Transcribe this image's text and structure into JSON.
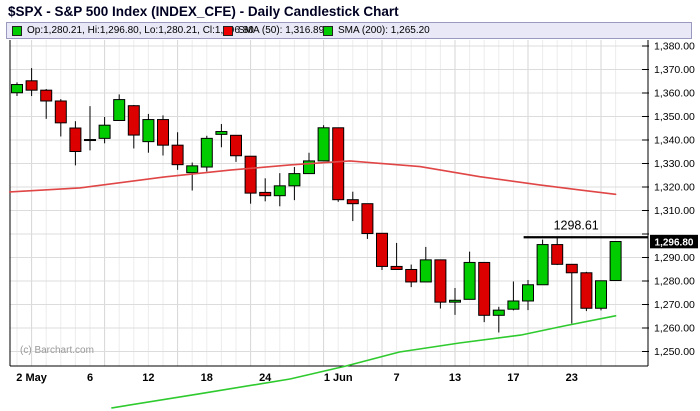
{
  "title": "$SPX - S&P 500 Index (INDEX_CFE) - Daily Candlestick Chart",
  "legend": {
    "ohlc": {
      "label": "Op:1,280.21, Hi:1,296.80, Lo:1,280.21, Cl:1,296.80",
      "color": "#00cc00"
    },
    "sma50": {
      "label": "SMA (50): 1,316.89",
      "color": "#ee0000",
      "value": 1316.89
    },
    "sma200": {
      "label": "SMA (200): 1,265.20",
      "color": "#00cc00",
      "value": 1265.2
    }
  },
  "watermark": "(c) Barchart.com",
  "price_tag": {
    "label": "1,296.80",
    "price": 1296.8
  },
  "colors": {
    "candle_up": "#00cc00",
    "candle_down": "#dd0000",
    "candle_border": "#000000",
    "sma50_line": "#e04646",
    "sma200_line": "#2eca2e",
    "grid_vertical": "#ececec",
    "grid_vertical_week": "#d6d6d6",
    "grid_horizontal": "#dcdcdc",
    "axis": "#000000",
    "annotation": "#000000",
    "tag_bg": "#000000",
    "tag_text": "#ffffff",
    "legend_bg": "#e8e8f7"
  },
  "chart_data": {
    "type": "candlestick",
    "title": "$SPX Daily Candlestick",
    "y_axis": {
      "min": 1250,
      "max": 1380,
      "tick_step": 10,
      "labels": [
        {
          "price": 1380,
          "label": "1,380.00"
        },
        {
          "price": 1370,
          "label": "1,370.00"
        },
        {
          "price": 1360,
          "label": "1,360.00"
        },
        {
          "price": 1350,
          "label": "1,350.00"
        },
        {
          "price": 1340,
          "label": "1,340.00"
        },
        {
          "price": 1330,
          "label": "1,330.00"
        },
        {
          "price": 1320,
          "label": "1,320.00"
        },
        {
          "price": 1310,
          "label": "1,310.00"
        },
        {
          "price": 1290,
          "label": "1,290.00"
        },
        {
          "price": 1280,
          "label": "1,280.00"
        },
        {
          "price": 1270,
          "label": "1,270.00"
        },
        {
          "price": 1260,
          "label": "1,260.00"
        },
        {
          "price": 1250,
          "label": "1,250.00"
        }
      ]
    },
    "x_axis": {
      "labels": [
        {
          "label": "2 May",
          "index": 1
        },
        {
          "label": "6",
          "index": 5
        },
        {
          "label": "12",
          "index": 9
        },
        {
          "label": "18",
          "index": 13
        },
        {
          "label": "24",
          "index": 17
        },
        {
          "label": "1 Jun",
          "index": 22
        },
        {
          "label": "7",
          "index": 26
        },
        {
          "label": "13",
          "index": 30
        },
        {
          "label": "17",
          "index": 34
        },
        {
          "label": "23",
          "index": 38
        }
      ],
      "week_start_indices": [
        1,
        6,
        11,
        16,
        21,
        25,
        30,
        35,
        40
      ]
    },
    "candles": [
      {
        "date": "29 Apr",
        "o": 1360.1,
        "h": 1364.5,
        "l": 1358.7,
        "c": 1363.6
      },
      {
        "date": "2 May",
        "o": 1365.2,
        "h": 1370.6,
        "l": 1358.7,
        "c": 1361.2
      },
      {
        "date": "3 May",
        "o": 1361.2,
        "h": 1361.7,
        "l": 1349.0,
        "c": 1356.6
      },
      {
        "date": "4 May",
        "o": 1356.6,
        "h": 1357.4,
        "l": 1341.5,
        "c": 1347.3
      },
      {
        "date": "5 May",
        "o": 1345.1,
        "h": 1348.0,
        "l": 1329.2,
        "c": 1335.1
      },
      {
        "date": "6 May",
        "o": 1340.2,
        "h": 1354.4,
        "l": 1335.6,
        "c": 1340.2
      },
      {
        "date": "9 May",
        "o": 1340.7,
        "h": 1349.8,
        "l": 1338.6,
        "c": 1346.3
      },
      {
        "date": "10 May",
        "o": 1348.3,
        "h": 1359.4,
        "l": 1348.3,
        "c": 1357.2
      },
      {
        "date": "11 May",
        "o": 1354.6,
        "h": 1354.9,
        "l": 1336.4,
        "c": 1342.1
      },
      {
        "date": "12 May",
        "o": 1339.3,
        "h": 1351.1,
        "l": 1334.6,
        "c": 1348.7
      },
      {
        "date": "13 May",
        "o": 1348.7,
        "h": 1350.5,
        "l": 1333.4,
        "c": 1337.8
      },
      {
        "date": "16 May",
        "o": 1337.8,
        "h": 1343.3,
        "l": 1327.3,
        "c": 1329.5
      },
      {
        "date": "17 May",
        "o": 1326.1,
        "h": 1330.4,
        "l": 1318.5,
        "c": 1329.0
      },
      {
        "date": "18 May",
        "o": 1328.5,
        "h": 1341.8,
        "l": 1326.6,
        "c": 1340.7
      },
      {
        "date": "19 May",
        "o": 1342.4,
        "h": 1346.8,
        "l": 1336.9,
        "c": 1343.6
      },
      {
        "date": "20 May",
        "o": 1342.0,
        "h": 1342.0,
        "l": 1330.7,
        "c": 1333.3
      },
      {
        "date": "23 May",
        "o": 1333.1,
        "h": 1333.1,
        "l": 1312.9,
        "c": 1317.4
      },
      {
        "date": "24 May",
        "o": 1317.7,
        "h": 1323.7,
        "l": 1313.9,
        "c": 1316.3
      },
      {
        "date": "25 May",
        "o": 1316.3,
        "h": 1325.9,
        "l": 1311.8,
        "c": 1320.5
      },
      {
        "date": "26 May",
        "o": 1320.5,
        "h": 1328.5,
        "l": 1314.4,
        "c": 1325.7
      },
      {
        "date": "27 May",
        "o": 1325.7,
        "h": 1334.6,
        "l": 1325.7,
        "c": 1331.1
      },
      {
        "date": "31 May",
        "o": 1331.1,
        "h": 1346.3,
        "l": 1331.1,
        "c": 1345.2
      },
      {
        "date": "1 Jun",
        "o": 1345.2,
        "h": 1345.2,
        "l": 1313.7,
        "c": 1314.6
      },
      {
        "date": "2 Jun",
        "o": 1314.6,
        "h": 1318.0,
        "l": 1305.5,
        "c": 1312.9
      },
      {
        "date": "3 Jun",
        "o": 1312.9,
        "h": 1312.9,
        "l": 1297.9,
        "c": 1300.2
      },
      {
        "date": "6 Jun",
        "o": 1300.3,
        "h": 1300.3,
        "l": 1284.7,
        "c": 1286.2
      },
      {
        "date": "7 Jun",
        "o": 1286.2,
        "h": 1296.2,
        "l": 1284.7,
        "c": 1284.9
      },
      {
        "date": "8 Jun",
        "o": 1284.9,
        "h": 1287.0,
        "l": 1277.4,
        "c": 1279.6
      },
      {
        "date": "9 Jun",
        "o": 1279.6,
        "h": 1294.5,
        "l": 1279.6,
        "c": 1289.0
      },
      {
        "date": "10 Jun",
        "o": 1289.0,
        "h": 1289.0,
        "l": 1268.3,
        "c": 1271.0
      },
      {
        "date": "13 Jun",
        "o": 1271.0,
        "h": 1277.0,
        "l": 1265.6,
        "c": 1271.8
      },
      {
        "date": "14 Jun",
        "o": 1272.2,
        "h": 1292.5,
        "l": 1272.2,
        "c": 1287.9
      },
      {
        "date": "15 Jun",
        "o": 1287.9,
        "h": 1287.9,
        "l": 1262.5,
        "c": 1265.4
      },
      {
        "date": "16 Jun",
        "o": 1265.4,
        "h": 1269.0,
        "l": 1258.1,
        "c": 1267.6
      },
      {
        "date": "17 Jun",
        "o": 1268.0,
        "h": 1279.8,
        "l": 1267.5,
        "c": 1271.5
      },
      {
        "date": "20 Jun",
        "o": 1271.5,
        "h": 1280.4,
        "l": 1267.6,
        "c": 1278.4
      },
      {
        "date": "21 Jun",
        "o": 1278.4,
        "h": 1297.6,
        "l": 1278.4,
        "c": 1295.5
      },
      {
        "date": "22 Jun",
        "o": 1295.5,
        "h": 1298.6,
        "l": 1286.8,
        "c": 1287.1
      },
      {
        "date": "23 Jun",
        "o": 1287.1,
        "h": 1287.1,
        "l": 1261.9,
        "c": 1283.5
      },
      {
        "date": "24 Jun",
        "o": 1283.5,
        "h": 1283.9,
        "l": 1267.2,
        "c": 1268.4
      },
      {
        "date": "27 Jun",
        "o": 1268.4,
        "h": 1280.1,
        "l": 1267.5,
        "c": 1280.1
      },
      {
        "date": "28 Jun",
        "o": 1280.2,
        "h": 1296.8,
        "l": 1280.2,
        "c": 1296.8
      }
    ],
    "sma50": {
      "name": "SMA (50)",
      "last_value": 1316.89,
      "points": [
        [
          -0.5,
          1317.9
        ],
        [
          4.3,
          1319.6
        ],
        [
          10.1,
          1324.3
        ],
        [
          14.6,
          1327.2
        ],
        [
          18.7,
          1329.4
        ],
        [
          22.8,
          1331.1
        ],
        [
          27.6,
          1328.7
        ],
        [
          31.7,
          1324.4
        ],
        [
          35.8,
          1320.9
        ],
        [
          38.6,
          1318.7
        ],
        [
          41,
          1316.9
        ]
      ]
    },
    "sma200": {
      "name": "SMA (200)",
      "last_value": 1265.2,
      "points": [
        [
          6.5,
          1226.0
        ],
        [
          12.5,
          1232.0
        ],
        [
          18.7,
          1238.3
        ],
        [
          22.5,
          1243.8
        ],
        [
          26.2,
          1249.8
        ],
        [
          30.3,
          1253.6
        ],
        [
          34.5,
          1257.0
        ],
        [
          37.5,
          1260.9
        ],
        [
          41,
          1265.2
        ]
      ]
    },
    "resistance": {
      "price": 1298.61,
      "label": "1298.61",
      "from_index": 34.7,
      "label_index": 38.3,
      "extends_to": "right-edge"
    }
  }
}
